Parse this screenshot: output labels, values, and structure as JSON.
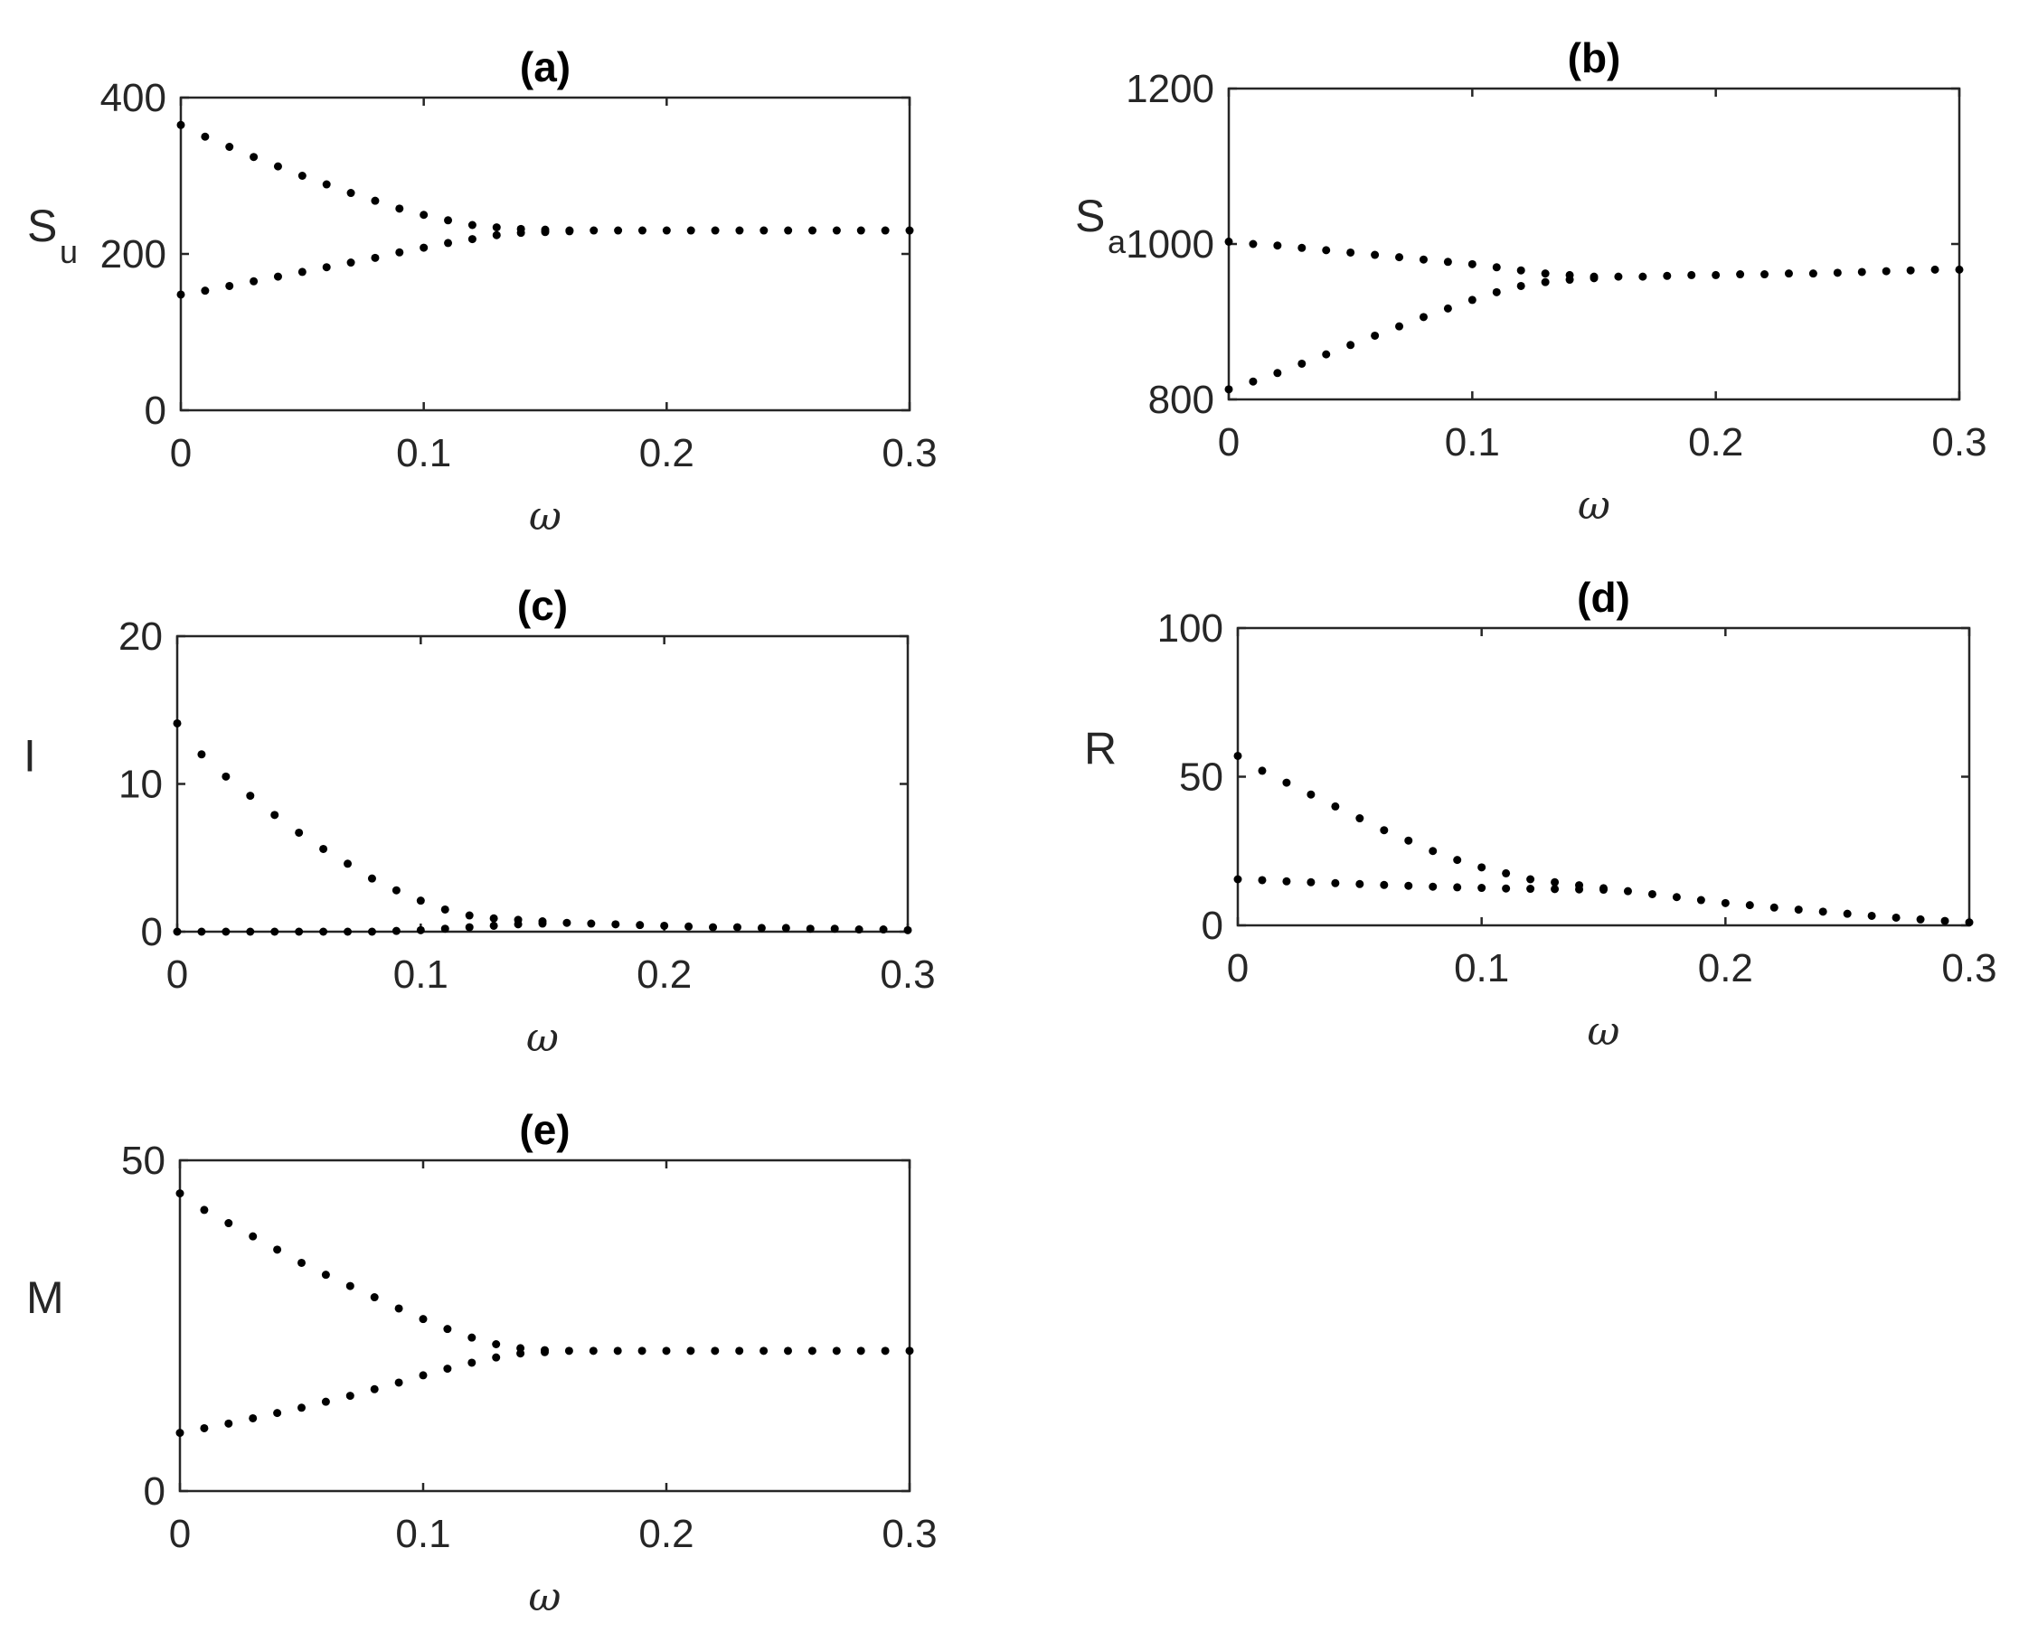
{
  "chart_data": [
    {
      "type": "scatter",
      "title": "(a)",
      "xlabel": "ω",
      "ylabel": "S",
      "ylabel_sub": "u",
      "xlim": [
        0,
        0.3
      ],
      "ylim": [
        0,
        400
      ],
      "xticks": [
        0,
        0.1,
        0.2,
        0.3
      ],
      "yticks": [
        0,
        200,
        400
      ],
      "xtick_labels": [
        "0",
        "0.1",
        "0.2",
        "0.3"
      ],
      "ytick_labels": [
        "0",
        "200",
        "400"
      ],
      "grid": false,
      "series": [
        {
          "x": [
            0,
            0.01,
            0.02,
            0.03,
            0.04,
            0.05,
            0.06,
            0.07,
            0.08,
            0.09,
            0.1,
            0.11,
            0.12,
            0.13,
            0.14,
            0.15,
            0.16,
            0.17,
            0.18,
            0.19,
            0.2,
            0.21,
            0.22,
            0.23,
            0.24,
            0.25,
            0.26,
            0.27,
            0.28,
            0.29,
            0.3
          ],
          "y": [
            365,
            350,
            337,
            324,
            312,
            300,
            289,
            278,
            268,
            258,
            250,
            243,
            237,
            234,
            232,
            231,
            230,
            230,
            230,
            230,
            230,
            230,
            230,
            230,
            230,
            230,
            230,
            230,
            230,
            230,
            230
          ]
        },
        {
          "x": [
            0,
            0.01,
            0.02,
            0.03,
            0.04,
            0.05,
            0.06,
            0.07,
            0.08,
            0.09,
            0.1,
            0.11,
            0.12,
            0.13,
            0.14,
            0.15,
            0.16
          ],
          "y": [
            148,
            153,
            159,
            165,
            171,
            177,
            183,
            189,
            195,
            202,
            208,
            214,
            219,
            224,
            227,
            228,
            229
          ]
        }
      ]
    },
    {
      "type": "scatter",
      "title": "(b)",
      "xlabel": "ω",
      "ylabel": "S",
      "ylabel_sub": "a",
      "xlim": [
        0,
        0.3
      ],
      "ylim": [
        800,
        1200
      ],
      "xticks": [
        0,
        0.1,
        0.2,
        0.3
      ],
      "yticks": [
        800,
        1000,
        1200
      ],
      "xtick_labels": [
        "0",
        "0.1",
        "0.2",
        "0.3"
      ],
      "ytick_labels": [
        "800",
        "1000",
        "1200"
      ],
      "grid": false,
      "series": [
        {
          "x": [
            0,
            0.01,
            0.02,
            0.03,
            0.04,
            0.05,
            0.06,
            0.07,
            0.08,
            0.09,
            0.1,
            0.11,
            0.12,
            0.13,
            0.14,
            0.15,
            0.16,
            0.17,
            0.18,
            0.19,
            0.2,
            0.21,
            0.22,
            0.23,
            0.24,
            0.25,
            0.26,
            0.27,
            0.28,
            0.29,
            0.3
          ],
          "y": [
            1003,
            1000,
            998,
            995,
            992,
            989,
            986,
            983,
            980,
            977,
            974,
            970,
            966,
            962,
            960,
            958,
            958,
            958,
            959,
            960,
            960,
            961,
            961,
            962,
            962,
            963,
            964,
            965,
            966,
            967,
            967
          ]
        },
        {
          "x": [
            0,
            0.01,
            0.02,
            0.03,
            0.04,
            0.05,
            0.06,
            0.07,
            0.08,
            0.09,
            0.1,
            0.11,
            0.12,
            0.13,
            0.14,
            0.15
          ],
          "y": [
            813,
            823,
            834,
            846,
            858,
            870,
            882,
            894,
            906,
            917,
            928,
            938,
            946,
            951,
            954,
            956
          ]
        }
      ]
    },
    {
      "type": "scatter",
      "title": "(c)",
      "xlabel": "ω",
      "ylabel": "I",
      "xlim": [
        0,
        0.3
      ],
      "ylim": [
        0,
        20
      ],
      "xticks": [
        0,
        0.1,
        0.2,
        0.3
      ],
      "yticks": [
        0,
        10,
        20
      ],
      "xtick_labels": [
        "0",
        "0.1",
        "0.2",
        "0.3"
      ],
      "ytick_labels": [
        "0",
        "10",
        "20"
      ],
      "grid": false,
      "series": [
        {
          "x": [
            0,
            0.01,
            0.02,
            0.03,
            0.04,
            0.05,
            0.06,
            0.07,
            0.08,
            0.09,
            0.1,
            0.11,
            0.12,
            0.13,
            0.14,
            0.15,
            0.16,
            0.17,
            0.18,
            0.19,
            0.2,
            0.21,
            0.22,
            0.23,
            0.24,
            0.25,
            0.26,
            0.27,
            0.28,
            0.29,
            0.3
          ],
          "y": [
            14.1,
            12.0,
            10.5,
            9.2,
            7.9,
            6.7,
            5.6,
            4.6,
            3.6,
            2.8,
            2.1,
            1.5,
            1.1,
            0.9,
            0.8,
            0.7,
            0.6,
            0.55,
            0.5,
            0.45,
            0.4,
            0.35,
            0.3,
            0.3,
            0.25,
            0.25,
            0.2,
            0.2,
            0.15,
            0.15,
            0.1
          ]
        },
        {
          "x": [
            0,
            0.01,
            0.02,
            0.03,
            0.04,
            0.05,
            0.06,
            0.07,
            0.08,
            0.09,
            0.1,
            0.11,
            0.12,
            0.13,
            0.14,
            0.15
          ],
          "y": [
            0,
            0,
            0,
            0,
            0,
            0,
            0,
            0,
            0,
            0.05,
            0.1,
            0.2,
            0.3,
            0.4,
            0.5,
            0.55
          ]
        }
      ]
    },
    {
      "type": "scatter",
      "title": "(d)",
      "xlabel": "ω",
      "ylabel": "R",
      "xlim": [
        0,
        0.3
      ],
      "ylim": [
        0,
        100
      ],
      "xticks": [
        0,
        0.1,
        0.2,
        0.3
      ],
      "yticks": [
        0,
        50,
        100
      ],
      "xtick_labels": [
        "0",
        "0.1",
        "0.2",
        "0.3"
      ],
      "ytick_labels": [
        "0",
        "50",
        "100"
      ],
      "grid": false,
      "series": [
        {
          "x": [
            0,
            0.01,
            0.02,
            0.03,
            0.04,
            0.05,
            0.06,
            0.07,
            0.08,
            0.09,
            0.1,
            0.11,
            0.12,
            0.13,
            0.14,
            0.15,
            0.16,
            0.17,
            0.18,
            0.19,
            0.2,
            0.21,
            0.22,
            0.23,
            0.24,
            0.25,
            0.26,
            0.27,
            0.28,
            0.29,
            0.3
          ],
          "y": [
            57,
            52,
            48,
            44,
            40,
            36,
            32,
            28.5,
            25,
            22,
            19.5,
            17.5,
            15.5,
            14.5,
            13.5,
            12.5,
            11.5,
            10.5,
            9.5,
            8.5,
            7.5,
            6.8,
            6,
            5.3,
            4.6,
            3.9,
            3.2,
            2.6,
            2,
            1.5,
            1
          ]
        },
        {
          "x": [
            0,
            0.01,
            0.02,
            0.03,
            0.04,
            0.05,
            0.06,
            0.07,
            0.08,
            0.09,
            0.1,
            0.11,
            0.12,
            0.13,
            0.14,
            0.15
          ],
          "y": [
            15.5,
            15.2,
            14.8,
            14.5,
            14.2,
            13.9,
            13.6,
            13.3,
            13,
            12.8,
            12.6,
            12.4,
            12.3,
            12.2,
            12.1,
            12
          ]
        }
      ]
    },
    {
      "type": "scatter",
      "title": "(e)",
      "xlabel": "ω",
      "ylabel": "M",
      "xlim": [
        0,
        0.3
      ],
      "ylim": [
        0,
        50
      ],
      "xticks": [
        0,
        0.1,
        0.2,
        0.3
      ],
      "yticks": [
        0,
        50
      ],
      "xtick_labels": [
        "0",
        "0.1",
        "0.2",
        "0.3"
      ],
      "ytick_labels": [
        "0",
        "50"
      ],
      "grid": false,
      "series": [
        {
          "x": [
            0,
            0.01,
            0.02,
            0.03,
            0.04,
            0.05,
            0.06,
            0.07,
            0.08,
            0.09,
            0.1,
            0.11,
            0.12,
            0.13,
            0.14,
            0.15,
            0.16,
            0.17,
            0.18,
            0.19,
            0.2,
            0.21,
            0.22,
            0.23,
            0.24,
            0.25,
            0.26,
            0.27,
            0.28,
            0.29,
            0.3
          ],
          "y": [
            45,
            42.5,
            40.5,
            38.5,
            36.5,
            34.5,
            32.7,
            31,
            29.3,
            27.6,
            26,
            24.5,
            23.2,
            22.2,
            21.6,
            21.3,
            21.2,
            21.2,
            21.2,
            21.2,
            21.2,
            21.2,
            21.2,
            21.2,
            21.2,
            21.2,
            21.2,
            21.2,
            21.2,
            21.2,
            21.2
          ]
        },
        {
          "x": [
            0,
            0.01,
            0.02,
            0.03,
            0.04,
            0.05,
            0.06,
            0.07,
            0.08,
            0.09,
            0.1,
            0.11,
            0.12,
            0.13,
            0.14,
            0.15
          ],
          "y": [
            8.8,
            9.5,
            10.2,
            11,
            11.8,
            12.6,
            13.5,
            14.4,
            15.4,
            16.4,
            17.5,
            18.5,
            19.4,
            20.2,
            20.8,
            21
          ]
        }
      ]
    }
  ]
}
